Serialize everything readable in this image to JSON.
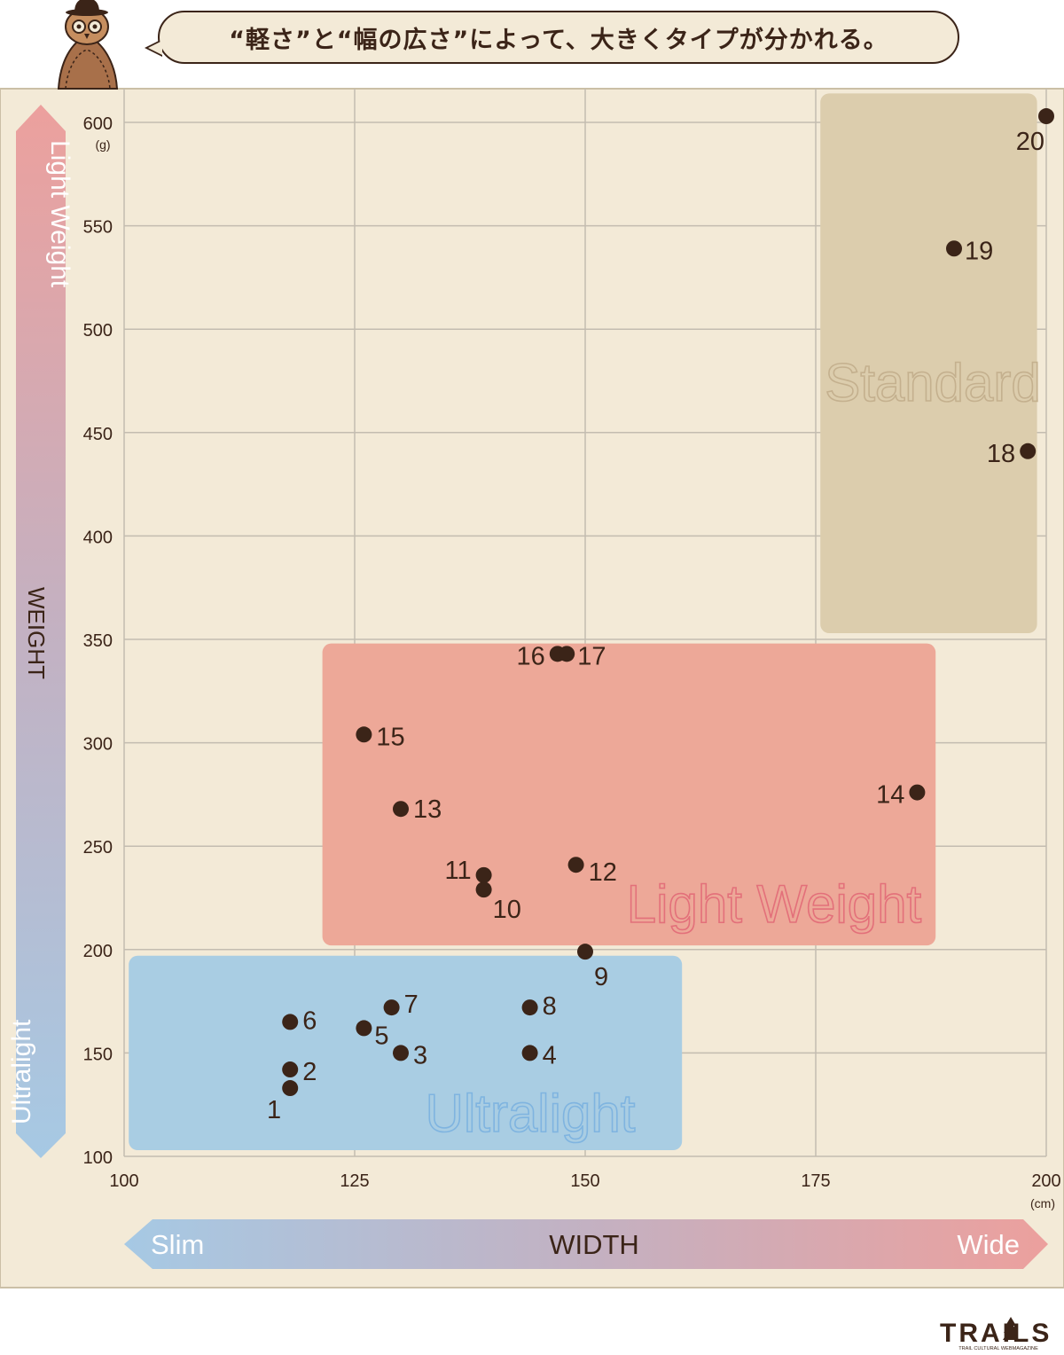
{
  "header": {
    "caption": "“軽さ”と“幅の広さ”によって、大きくタイプが分かれる。"
  },
  "chart_data": {
    "type": "scatter",
    "x_ticks": [
      "100",
      "125",
      "150",
      "175",
      "200"
    ],
    "x_unit": "(cm)",
    "xlim": [
      100,
      200
    ],
    "y_ticks": [
      "100",
      "150",
      "200",
      "250",
      "300",
      "350",
      "400",
      "450",
      "500",
      "550",
      "600"
    ],
    "y_unit": "(g)",
    "ylim": [
      100,
      600
    ],
    "grid": true,
    "points": [
      {
        "label": "1",
        "x": 118,
        "y": 133
      },
      {
        "label": "2",
        "x": 118,
        "y": 142
      },
      {
        "label": "3",
        "x": 130,
        "y": 150
      },
      {
        "label": "4",
        "x": 144,
        "y": 150
      },
      {
        "label": "5",
        "x": 126,
        "y": 162
      },
      {
        "label": "6",
        "x": 118,
        "y": 165
      },
      {
        "label": "7",
        "x": 129,
        "y": 172
      },
      {
        "label": "8",
        "x": 144,
        "y": 172
      },
      {
        "label": "9",
        "x": 150,
        "y": 199
      },
      {
        "label": "10",
        "x": 139,
        "y": 229
      },
      {
        "label": "11",
        "x": 139,
        "y": 236
      },
      {
        "label": "12",
        "x": 149,
        "y": 241
      },
      {
        "label": "13",
        "x": 130,
        "y": 268
      },
      {
        "label": "14",
        "x": 186,
        "y": 276
      },
      {
        "label": "15",
        "x": 126,
        "y": 304
      },
      {
        "label": "16",
        "x": 147,
        "y": 343
      },
      {
        "label": "17",
        "x": 148,
        "y": 343
      },
      {
        "label": "18",
        "x": 198,
        "y": 441
      },
      {
        "label": "19",
        "x": 190,
        "y": 539
      },
      {
        "label": "20",
        "x": 200,
        "y": 603
      }
    ],
    "zones": [
      {
        "name": "Ultralight",
        "x": [
          100.5,
          160.5
        ],
        "y": [
          103,
          197
        ],
        "fill": "#a9cde3",
        "stroke": "#7fb4e0"
      },
      {
        "name": "Light Weight",
        "x": [
          121.5,
          188
        ],
        "y": [
          202,
          348
        ],
        "fill": "#eda898",
        "stroke": "#e3707a"
      },
      {
        "name": "Standard",
        "x": [
          175.5,
          199
        ],
        "y": [
          353,
          614
        ],
        "fill": "#dccdad",
        "stroke": "#c4b08e"
      }
    ],
    "y_axis": {
      "label": "WEIGHT",
      "top": "Light Weight",
      "bottom": "Ultralight"
    },
    "x_axis": {
      "label": "WIDTH",
      "left": "Slim",
      "right": "Wide"
    }
  },
  "logo": {
    "name": "TRAILS",
    "tagline": "TRAIL CULTURAL WEBMAGAZINE"
  },
  "colors": {
    "background": "#f3ead7",
    "dark": "#3b2418",
    "grid": "#c3bcb0",
    "arrow_top": "#eca09d",
    "arrow_bottom": "#a6c9e4"
  }
}
